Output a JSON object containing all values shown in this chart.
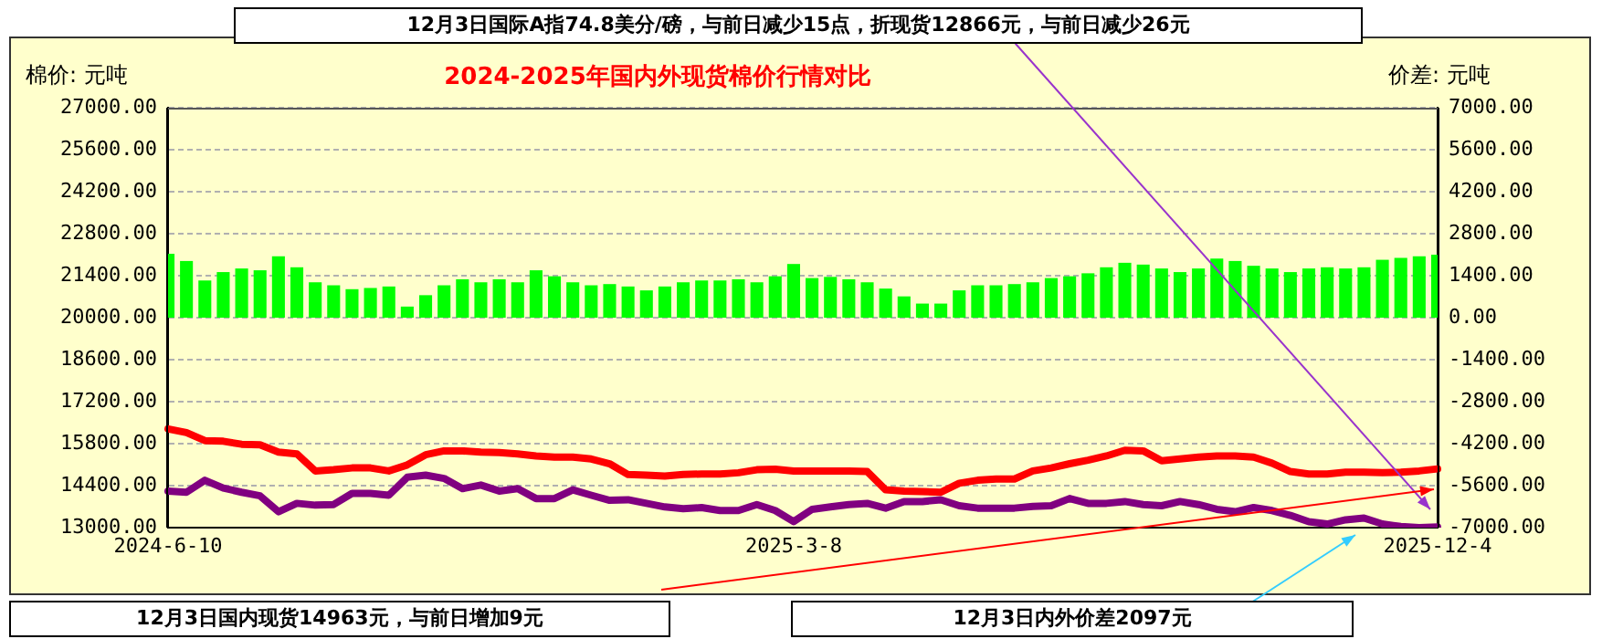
{
  "chart_data": {
    "type": "line",
    "title": "2024-2025年国内外现货棉价行情对比",
    "ylabel": "棉价: 元吨",
    "y2label": "价差: 元吨",
    "categories": [
      "2024-6-10",
      null,
      null,
      null,
      null,
      null,
      null,
      null,
      null,
      null,
      null,
      null,
      null,
      null,
      null,
      null,
      null,
      null,
      null,
      null,
      null,
      null,
      null,
      null,
      null,
      null,
      null,
      null,
      null,
      null,
      null,
      null,
      null,
      null,
      "2025-3-8",
      null,
      null,
      null,
      null,
      null,
      null,
      null,
      null,
      null,
      null,
      null,
      null,
      null,
      null,
      null,
      null,
      null,
      null,
      null,
      null,
      null,
      null,
      null,
      null,
      null,
      null,
      null,
      null,
      null,
      null,
      null,
      null,
      null,
      null,
      "2025-12-4"
    ],
    "series": [
      {
        "type": "bar",
        "axis": "y2",
        "color": "#00ff00",
        "values": [
          2130,
          1890,
          1240,
          1520,
          1640,
          1580,
          2050,
          1680,
          1180,
          1080,
          950,
          990,
          1040,
          370,
          750,
          1080,
          1280,
          1180,
          1280,
          1180,
          1580,
          1380,
          1180,
          1080,
          1120,
          1040,
          910,
          1040,
          1180,
          1240,
          1240,
          1280,
          1180,
          1380,
          1790,
          1320,
          1360,
          1280,
          1180,
          970,
          710,
          470,
          470,
          910,
          1080,
          1080,
          1120,
          1180,
          1320,
          1380,
          1480,
          1680,
          1830,
          1770,
          1640,
          1520,
          1640,
          1970,
          1890,
          1730,
          1640,
          1520,
          1640,
          1680,
          1640,
          1680,
          1930,
          1990,
          2050,
          2100
        ]
      },
      {
        "color": "#ff0000",
        "values": [
          16290,
          16170,
          15900,
          15880,
          15780,
          15760,
          15520,
          15460,
          14890,
          14930,
          14990,
          14990,
          14890,
          15090,
          15430,
          15560,
          15560,
          15520,
          15500,
          15460,
          15390,
          15350,
          15350,
          15290,
          15130,
          14770,
          14750,
          14720,
          14770,
          14790,
          14790,
          14830,
          14930,
          14950,
          14890,
          14890,
          14890,
          14890,
          14870,
          14260,
          14220,
          14200,
          14180,
          14480,
          14580,
          14620,
          14620,
          14890,
          14990,
          15130,
          15250,
          15390,
          15580,
          15560,
          15230,
          15290,
          15350,
          15390,
          15390,
          15350,
          15150,
          14870,
          14790,
          14790,
          14850,
          14850,
          14830,
          14850,
          14890,
          14960
        ]
      },
      {
        "color": "#800080",
        "values": [
          14220,
          14180,
          14580,
          14320,
          14180,
          14060,
          13530,
          13810,
          13750,
          13770,
          14140,
          14140,
          14080,
          14680,
          14750,
          14640,
          14300,
          14420,
          14220,
          14300,
          13970,
          13970,
          14260,
          14080,
          13910,
          13930,
          13810,
          13690,
          13630,
          13670,
          13570,
          13570,
          13770,
          13570,
          13200,
          13610,
          13690,
          13770,
          13810,
          13650,
          13870,
          13870,
          13930,
          13730,
          13650,
          13650,
          13650,
          13710,
          13730,
          13970,
          13810,
          13810,
          13870,
          13770,
          13730,
          13870,
          13770,
          13610,
          13530,
          13670,
          13570,
          13410,
          13200,
          13120,
          13260,
          13320,
          13120,
          13040,
          13000,
          13020
        ]
      }
    ],
    "ylim": [
      13000,
      27000
    ],
    "yticks": [
      {
        "value": 13000,
        "label": "13000.00"
      },
      {
        "value": 14400,
        "label": "14400.00"
      },
      {
        "value": 15800,
        "label": "15800.00"
      },
      {
        "value": 17200,
        "label": "17200.00"
      },
      {
        "value": 18600,
        "label": "18600.00"
      },
      {
        "value": 20000,
        "label": "20000.00"
      },
      {
        "value": 21400,
        "label": "21400.00"
      },
      {
        "value": 22800,
        "label": "22800.00"
      },
      {
        "value": 24200,
        "label": "24200.00"
      },
      {
        "value": 25600,
        "label": "25600.00"
      },
      {
        "value": 27000,
        "label": "27000.00"
      }
    ],
    "y2lim": [
      -7000,
      7000
    ],
    "y2ticks": [
      {
        "value": -7000,
        "label": "-7000.00"
      },
      {
        "value": -5600,
        "label": "-5600.00"
      },
      {
        "value": -4200,
        "label": "-4200.00"
      },
      {
        "value": -2800,
        "label": "-2800.00"
      },
      {
        "value": -1400,
        "label": "-1400.00"
      },
      {
        "value": 0,
        "label": "0.00"
      },
      {
        "value": 1400,
        "label": "1400.00"
      },
      {
        "value": 2800,
        "label": "2800.00"
      },
      {
        "value": 4200,
        "label": "4200.00"
      },
      {
        "value": 5600,
        "label": "5600.00"
      },
      {
        "value": 7000,
        "label": "7000.00"
      }
    ],
    "grid": "y",
    "annotations": [
      "12月3日国际A指74.8美分/磅，与前日减少15点，折现货12866元，与前日减少26元",
      "12月3日国内现货14963元，与前日增加9元",
      "12月3日内外价差2097元"
    ]
  }
}
